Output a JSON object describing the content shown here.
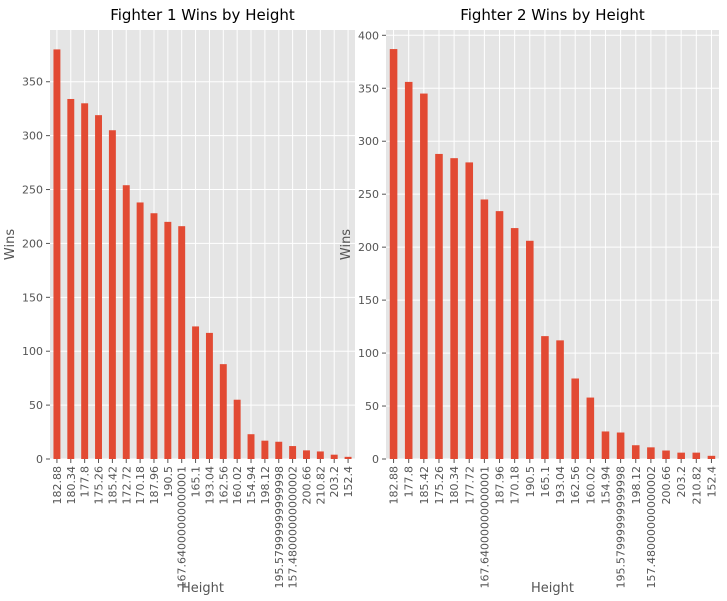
{
  "chart_data": [
    {
      "type": "bar",
      "title": "Fighter 1 Wins by Height",
      "xlabel": "Height",
      "ylabel": "Wins",
      "categories": [
        "182.88",
        "180.34",
        "177.8",
        "175.26",
        "185.42",
        "172.72",
        "170.18",
        "187.96",
        "190.5",
        "167.64000000000001",
        "165.1",
        "193.04",
        "162.56",
        "160.02",
        "154.94",
        "198.12",
        "195.57999999999998",
        "157.48000000000002",
        "200.66",
        "210.82",
        "203.2",
        "152.4"
      ],
      "values": [
        380,
        334,
        330,
        319,
        305,
        254,
        238,
        228,
        220,
        216,
        123,
        117,
        88,
        55,
        23,
        17,
        16,
        12,
        8,
        7,
        4,
        2
      ],
      "ylim": [
        0,
        398
      ],
      "yticks": [
        0,
        50,
        100,
        150,
        200,
        250,
        300,
        350
      ],
      "grid": true,
      "bar_color": "#E24A33",
      "background_color": "#E5E5E5"
    },
    {
      "type": "bar",
      "title": "Fighter 2 Wins by Height",
      "xlabel": "Height",
      "ylabel": "Wins",
      "categories": [
        "182.88",
        "177.8",
        "185.42",
        "175.26",
        "180.34",
        "177.72",
        "167.64000000000001",
        "187.96",
        "170.18",
        "190.5",
        "165.1",
        "193.04",
        "162.56",
        "160.02",
        "154.94",
        "195.57999999999998",
        "198.12",
        "157.48000000000002",
        "200.66",
        "203.2",
        "210.82",
        "152.4"
      ],
      "values": [
        387,
        356,
        345,
        288,
        284,
        280,
        245,
        234,
        218,
        206,
        116,
        112,
        76,
        58,
        26,
        25,
        13,
        11,
        8,
        6,
        6,
        3
      ],
      "ylim": [
        0,
        405
      ],
      "yticks": [
        0,
        50,
        100,
        150,
        200,
        250,
        300,
        350,
        400
      ],
      "grid": true,
      "bar_color": "#E24A33",
      "background_color": "#E5E5E5"
    }
  ]
}
